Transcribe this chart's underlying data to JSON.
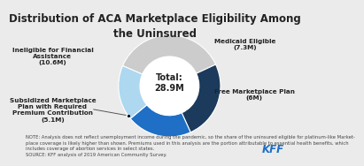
{
  "title": "Distribution of ACA Marketplace Eligibility Among\nthe Uninsured",
  "total_label": "Total:\n28.9M",
  "slices": [
    {
      "label": "Ineligible for Financial\nAssistance\n(10.6M)",
      "value": 10.6,
      "color": "#cccccc"
    },
    {
      "label": "Medicaid Eligible\n(7.3M)",
      "value": 7.3,
      "color": "#1b3a5c"
    },
    {
      "label": "Free Marketplace Plan\n(6M)",
      "value": 6.0,
      "color": "#1e6fc5"
    },
    {
      "label": "Subsidized Marketplace\nPlan with Required\nPremium Contribution\n(5.1M)",
      "value": 5.1,
      "color": "#add8f0"
    }
  ],
  "note1": "NOTE: Analysis does not reflect unemployment income during the pandemic, so the share of the uninsured eligible for platinum-like Market-",
  "note2": "place coverage is likely higher than shown. Premiums used in this analysis are the portion attributable to essential health benefits, which",
  "note3": "includes coverage of abortion services in select states.",
  "note4": "SOURCE: KFF analysis of 2019 American Community Survey.",
  "bg_color": "#ebebeb",
  "title_fontsize": 8.5,
  "note_fontsize": 3.8,
  "kff_color": "#1e6fc5",
  "label_fontsize": 5.2,
  "total_fontsize": 7.0,
  "startangle": 156.6
}
